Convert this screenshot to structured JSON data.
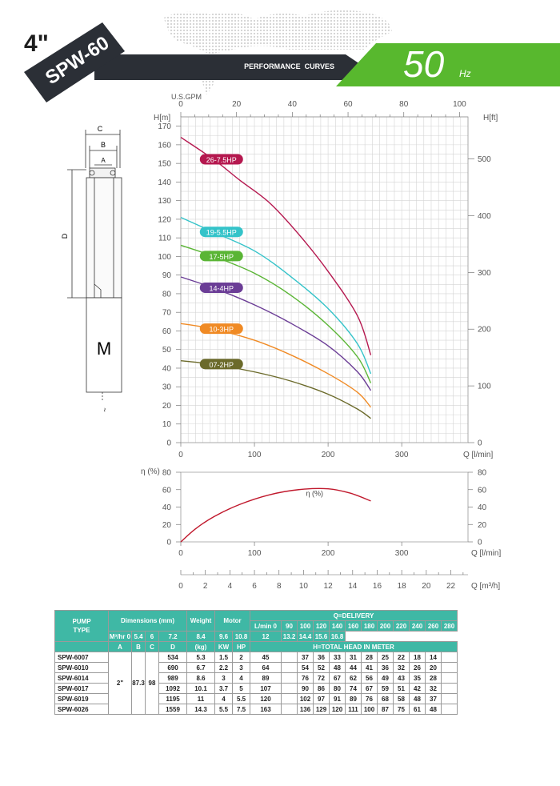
{
  "header": {
    "size_label": "4\"",
    "model": "SPW-60",
    "banner_text": "PERFORMANCE  CURVES",
    "frequency_value": "50",
    "frequency_unit": "Hz"
  },
  "colors": {
    "banner_dark": "#2b2f36",
    "badge_green": "#58b82e",
    "table_header": "#3fb8a5",
    "curve_26": "#b5184f",
    "curve_19": "#34c3c9",
    "curve_17": "#5ab535",
    "curve_14": "#6b3d96",
    "curve_10": "#f08a24",
    "curve_07": "#6b6a2a",
    "efficiency": "#c0182c"
  },
  "diagram": {
    "label_c": "C",
    "label_b": "B",
    "label_a": "A",
    "label_d": "D",
    "label_m": "M"
  },
  "chart_data": [
    {
      "type": "line",
      "title": "",
      "top_axis_label": "U.S.GPM",
      "top_axis_ticks": [
        "0",
        "20",
        "40",
        "60",
        "80",
        "100"
      ],
      "xlabel": "Q [l/min]",
      "ylabel_left": "H[m]",
      "ylabel_right": "H[ft]",
      "xlim": [
        0,
        390
      ],
      "ylim": [
        0,
        175
      ],
      "x_ticks": [
        0,
        100,
        200,
        300
      ],
      "y_ticks": [
        0,
        10,
        20,
        30,
        40,
        50,
        60,
        70,
        80,
        90,
        100,
        110,
        120,
        130,
        140,
        150,
        160,
        170
      ],
      "right_ticks": [
        0,
        100,
        200,
        300,
        400,
        500
      ],
      "grid": true,
      "series": [
        {
          "name": "26-7.5HP",
          "color": "#b5184f",
          "label_at": [
            28,
            152
          ],
          "points": [
            [
              0,
              164
            ],
            [
              45,
              152
            ],
            [
              80,
              141
            ],
            [
              120,
              129
            ],
            [
              160,
              112
            ],
            [
              200,
              92
            ],
            [
              240,
              68
            ],
            [
              258,
              47
            ]
          ]
        },
        {
          "name": "19-5.5HP",
          "color": "#34c3c9",
          "label_at": [
            28,
            113
          ],
          "points": [
            [
              0,
              121
            ],
            [
              45,
              113
            ],
            [
              100,
              103
            ],
            [
              150,
              89
            ],
            [
              200,
              72
            ],
            [
              240,
              53
            ],
            [
              258,
              37
            ]
          ]
        },
        {
          "name": "17-5HP",
          "color": "#5ab535",
          "label_at": [
            28,
            100
          ],
          "points": [
            [
              0,
              106
            ],
            [
              45,
              100
            ],
            [
              100,
              91
            ],
            [
              150,
              79
            ],
            [
              200,
              63
            ],
            [
              240,
              46
            ],
            [
              258,
              32
            ]
          ]
        },
        {
          "name": "14-4HP",
          "color": "#6b3d96",
          "label_at": [
            28,
            83
          ],
          "points": [
            [
              0,
              89
            ],
            [
              45,
              83
            ],
            [
              100,
              74
            ],
            [
              150,
              64
            ],
            [
              200,
              52
            ],
            [
              240,
              38
            ],
            [
              258,
              28
            ]
          ]
        },
        {
          "name": "10-3HP",
          "color": "#f08a24",
          "label_at": [
            28,
            61
          ],
          "points": [
            [
              0,
              64
            ],
            [
              45,
              61
            ],
            [
              100,
              55
            ],
            [
              150,
              47
            ],
            [
              200,
              37
            ],
            [
              240,
              27
            ],
            [
              258,
              19
            ]
          ]
        },
        {
          "name": "07-2HP",
          "color": "#6b6a2a",
          "label_at": [
            28,
            42
          ],
          "points": [
            [
              0,
              44
            ],
            [
              45,
              42
            ],
            [
              100,
              38
            ],
            [
              150,
              33
            ],
            [
              200,
              26
            ],
            [
              240,
              18
            ],
            [
              258,
              13
            ]
          ]
        }
      ]
    },
    {
      "type": "line",
      "title": "",
      "ylabel_left": "η (%)",
      "xlabel": "Q [l/min]",
      "xlim": [
        0,
        390
      ],
      "ylim": [
        0,
        80
      ],
      "x_ticks": [
        0,
        100,
        200,
        300
      ],
      "y_ticks": [
        0,
        20,
        40,
        60,
        80
      ],
      "grid": false,
      "series": [
        {
          "name": "η (%)",
          "color": "#c0182c",
          "label_at": [
            170,
            53
          ],
          "points": [
            [
              0,
              0
            ],
            [
              20,
              15
            ],
            [
              45,
              29
            ],
            [
              80,
              43
            ],
            [
              120,
              54
            ],
            [
              160,
              60
            ],
            [
              200,
              61
            ],
            [
              230,
              56
            ],
            [
              258,
              47
            ]
          ]
        }
      ]
    },
    {
      "type": "axis",
      "xlabel": "Q [m³/h]",
      "xlim": [
        0,
        23.4
      ],
      "x_ticks": [
        0,
        2,
        4,
        6,
        8,
        10,
        12,
        14,
        16,
        18,
        20,
        22
      ]
    }
  ],
  "table": {
    "headers": {
      "pump_type": [
        "PUMP",
        "TYPE"
      ],
      "dimensions": "Dimensions (mm)",
      "weight": "Weight",
      "motor": "Motor",
      "delivery": "Q=DELIVERY",
      "lmin_label": "L/min",
      "m3h_label": "M³/hr",
      "total_head": "H=TOTAL HEAD IN METER",
      "dim_cols": [
        "A",
        "B",
        "C",
        "D"
      ],
      "weight_unit": "(kg)",
      "motor_cols": [
        "KW",
        "HP"
      ]
    },
    "lmin": [
      "0",
      "90",
      "100",
      "120",
      "140",
      "160",
      "180",
      "200",
      "220",
      "240",
      "260",
      "280"
    ],
    "m3h": [
      "0",
      "5.4",
      "6",
      "7.2",
      "8.4",
      "9.6",
      "10.8",
      "12",
      "13.2",
      "14.4",
      "15.6",
      "16.8"
    ],
    "shared": {
      "a": "2\"",
      "b": "87.3",
      "c": "98"
    },
    "rows": [
      {
        "type": "SPW-6007",
        "d": "534",
        "kg": "5.3",
        "kw": "1.5",
        "hp": "2",
        "h": [
          "45",
          "",
          "37",
          "36",
          "33",
          "31",
          "28",
          "25",
          "22",
          "18",
          "14",
          ""
        ]
      },
      {
        "type": "SPW-6010",
        "d": "690",
        "kg": "6.7",
        "kw": "2.2",
        "hp": "3",
        "h": [
          "64",
          "",
          "54",
          "52",
          "48",
          "44",
          "41",
          "36",
          "32",
          "26",
          "20",
          ""
        ]
      },
      {
        "type": "SPW-6014",
        "d": "989",
        "kg": "8.6",
        "kw": "3",
        "hp": "4",
        "h": [
          "89",
          "",
          "76",
          "72",
          "67",
          "62",
          "56",
          "49",
          "43",
          "35",
          "28",
          ""
        ]
      },
      {
        "type": "SPW-6017",
        "d": "1092",
        "kg": "10.1",
        "kw": "3.7",
        "hp": "5",
        "h": [
          "107",
          "",
          "90",
          "86",
          "80",
          "74",
          "67",
          "59",
          "51",
          "42",
          "32",
          ""
        ]
      },
      {
        "type": "SPW-6019",
        "d": "1195",
        "kg": "11",
        "kw": "4",
        "hp": "5.5",
        "h": [
          "120",
          "",
          "102",
          "97",
          "91",
          "89",
          "76",
          "68",
          "58",
          "48",
          "37",
          ""
        ]
      },
      {
        "type": "SPW-6026",
        "d": "1559",
        "kg": "14.3",
        "kw": "5.5",
        "hp": "7.5",
        "h": [
          "163",
          "",
          "136",
          "129",
          "120",
          "111",
          "100",
          "87",
          "75",
          "61",
          "48",
          ""
        ]
      }
    ]
  }
}
